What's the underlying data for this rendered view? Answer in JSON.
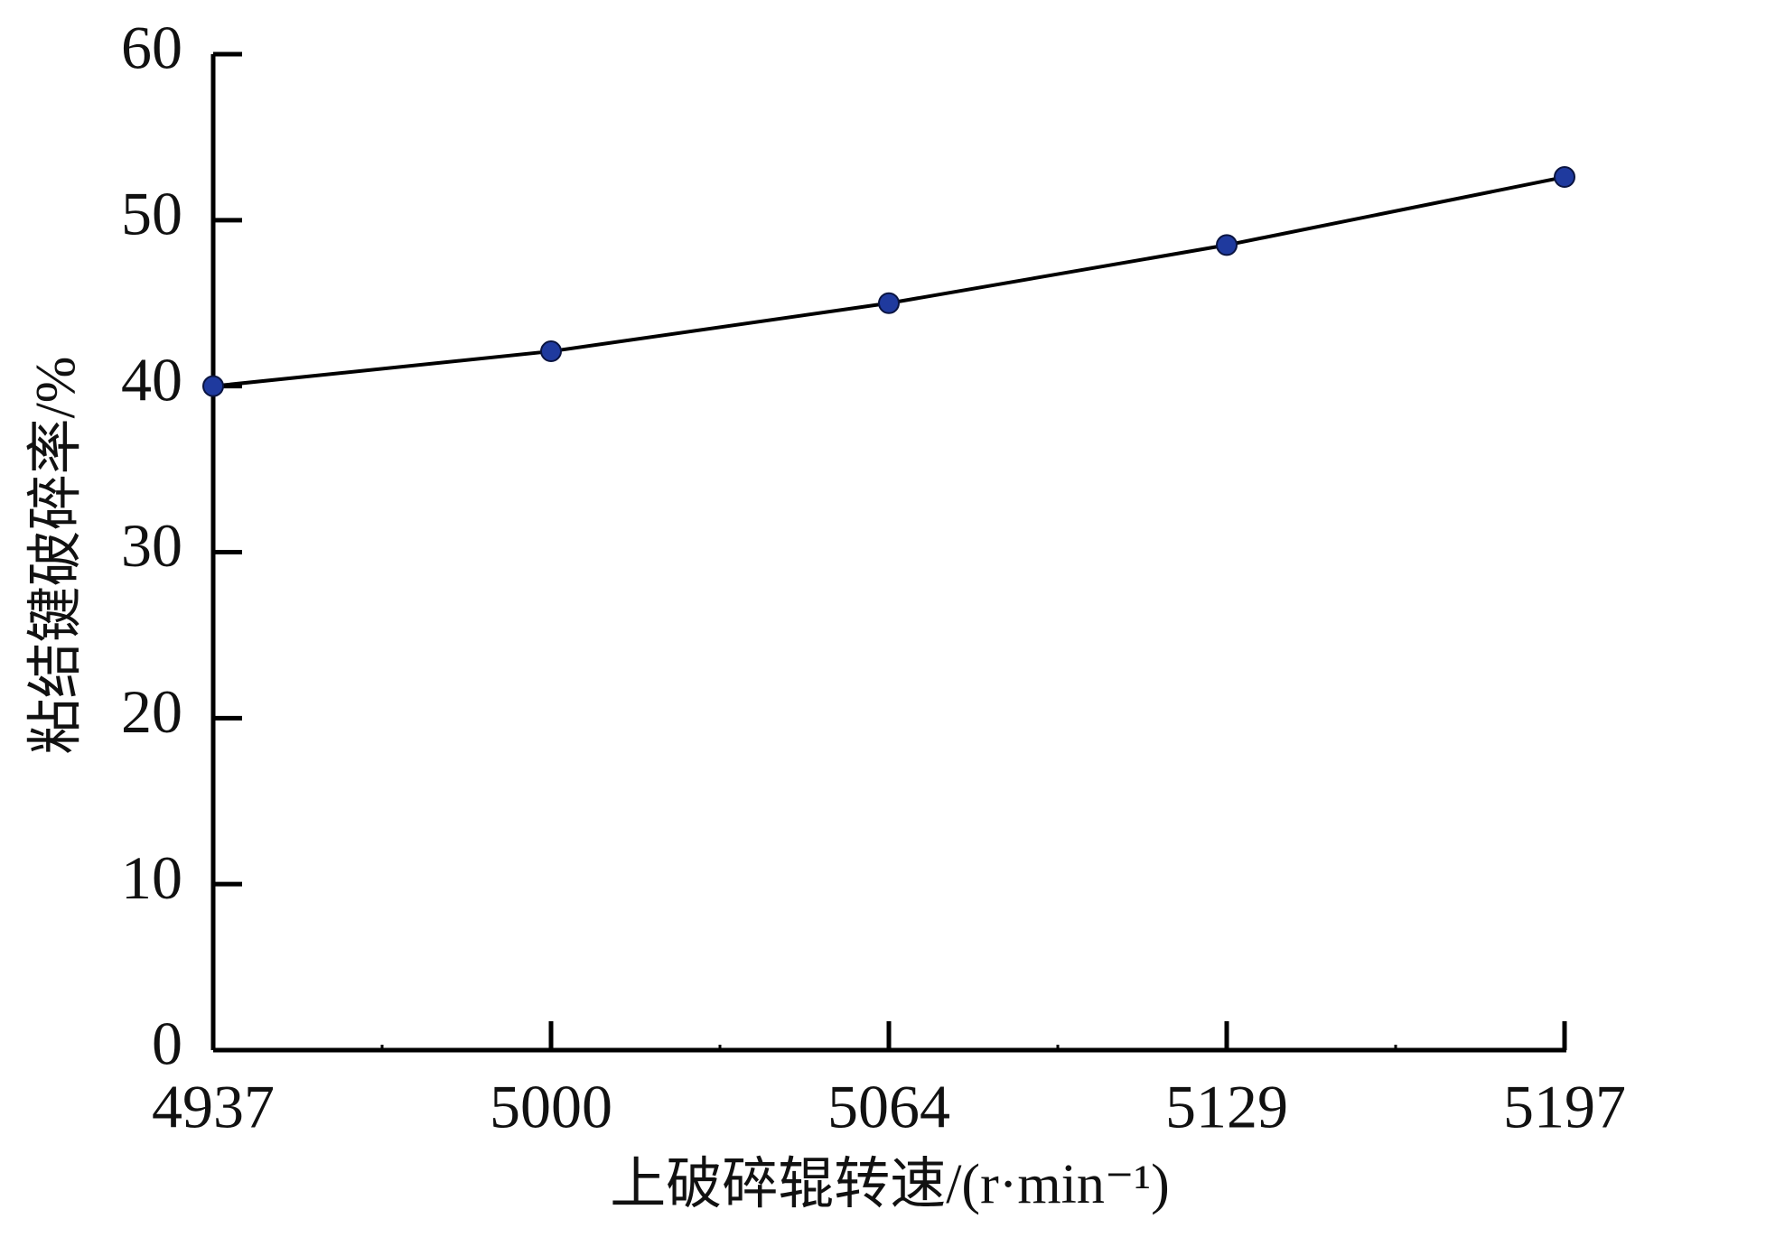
{
  "chart_data": {
    "type": "line",
    "x_label": "上破碎辊转速/(r·min⁻¹)",
    "y_label": "粘结键破碎率/%",
    "categories": [
      "4937",
      "5000",
      "5064",
      "5129",
      "5197"
    ],
    "series": [
      {
        "name": "粘结键破碎率",
        "color": "#1f3a9e",
        "values": [
          40.0,
          42.1,
          45.0,
          48.5,
          52.6
        ]
      }
    ],
    "ylim": [
      0,
      60
    ],
    "yticks": [
      0,
      10,
      20,
      30,
      40,
      50,
      60
    ]
  }
}
